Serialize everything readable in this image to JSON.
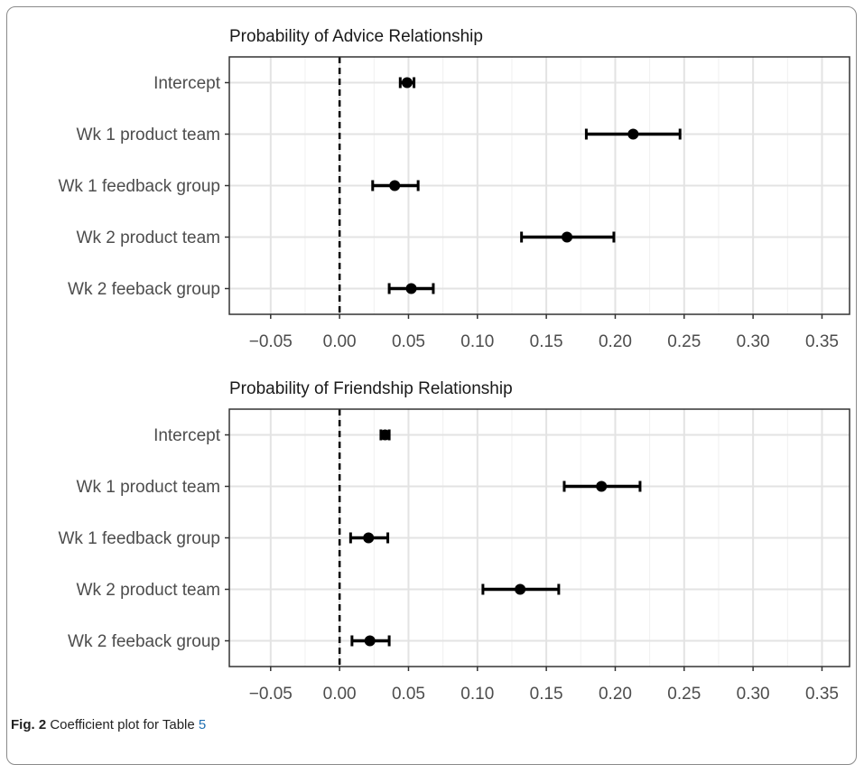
{
  "caption": {
    "label": "Fig. 2",
    "text": "Coefficient plot for Table",
    "ref": "5"
  },
  "chart_data": [
    {
      "type": "errorbar",
      "title": "Probability of Advice Relationship",
      "xlabel": "",
      "ylabel": "",
      "xlim": [
        -0.08,
        0.37
      ],
      "xticks": [
        -0.05,
        0.0,
        0.05,
        0.1,
        0.15,
        0.2,
        0.25,
        0.3,
        0.35
      ],
      "xtick_labels": [
        "−0.05",
        "0.00",
        "0.05",
        "0.10",
        "0.15",
        "0.20",
        "0.25",
        "0.30",
        "0.35"
      ],
      "reference_line": 0.0,
      "grid": true,
      "categories": [
        "Intercept",
        "Wk 1 product team",
        "Wk 1 feedback group",
        "Wk 2 product team",
        "Wk 2 feeback group"
      ],
      "estimates": [
        0.049,
        0.213,
        0.04,
        0.165,
        0.052
      ],
      "lower": [
        0.044,
        0.179,
        0.024,
        0.132,
        0.036
      ],
      "upper": [
        0.054,
        0.247,
        0.057,
        0.199,
        0.068
      ]
    },
    {
      "type": "errorbar",
      "title": "Probability of Friendship Relationship",
      "xlabel": "",
      "ylabel": "",
      "xlim": [
        -0.08,
        0.37
      ],
      "xticks": [
        -0.05,
        0.0,
        0.05,
        0.1,
        0.15,
        0.2,
        0.25,
        0.3,
        0.35
      ],
      "xtick_labels": [
        "−0.05",
        "0.00",
        "0.05",
        "0.10",
        "0.15",
        "0.20",
        "0.25",
        "0.30",
        "0.35"
      ],
      "reference_line": 0.0,
      "grid": true,
      "categories": [
        "Intercept",
        "Wk 1 product team",
        "Wk 1 feedback group",
        "Wk 2 product team",
        "Wk 2 feeback group"
      ],
      "estimates": [
        0.033,
        0.19,
        0.021,
        0.131,
        0.022
      ],
      "lower": [
        0.03,
        0.163,
        0.008,
        0.104,
        0.009
      ],
      "upper": [
        0.036,
        0.218,
        0.035,
        0.159,
        0.036
      ]
    }
  ]
}
